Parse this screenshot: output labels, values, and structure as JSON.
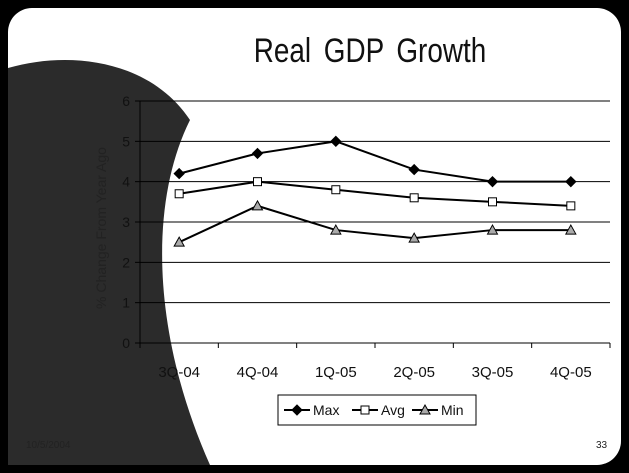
{
  "slide": {
    "date": "10/5/2004",
    "page_number": "33"
  },
  "colors": {
    "background": "#000000",
    "panel": "#ffffff",
    "shadow_arc": "#2b2b2b",
    "line": "#000000",
    "marker_avg_fill": "#ffffff",
    "marker_min_fill": "#aaaaaa"
  },
  "chart_data": {
    "type": "line",
    "title": "Real GDP Growth",
    "ylabel": "% Change From Year Ago",
    "xlabel": "",
    "categories": [
      "3Q-04",
      "4Q-04",
      "1Q-05",
      "2Q-05",
      "3Q-05",
      "4Q-05"
    ],
    "ylim": [
      0,
      6
    ],
    "yticks": [
      "0",
      "1",
      "2",
      "3",
      "4",
      "5",
      "6"
    ],
    "grid": true,
    "legend_position": "bottom",
    "series": [
      {
        "name": "Max",
        "marker": "diamond",
        "values": [
          4.2,
          4.7,
          5.0,
          4.3,
          4.0,
          4.0
        ]
      },
      {
        "name": "Avg",
        "marker": "square",
        "values": [
          3.7,
          4.0,
          3.8,
          3.6,
          3.5,
          3.4
        ]
      },
      {
        "name": "Min",
        "marker": "triangle",
        "values": [
          2.5,
          3.4,
          2.8,
          2.6,
          2.8,
          2.8
        ]
      }
    ]
  }
}
